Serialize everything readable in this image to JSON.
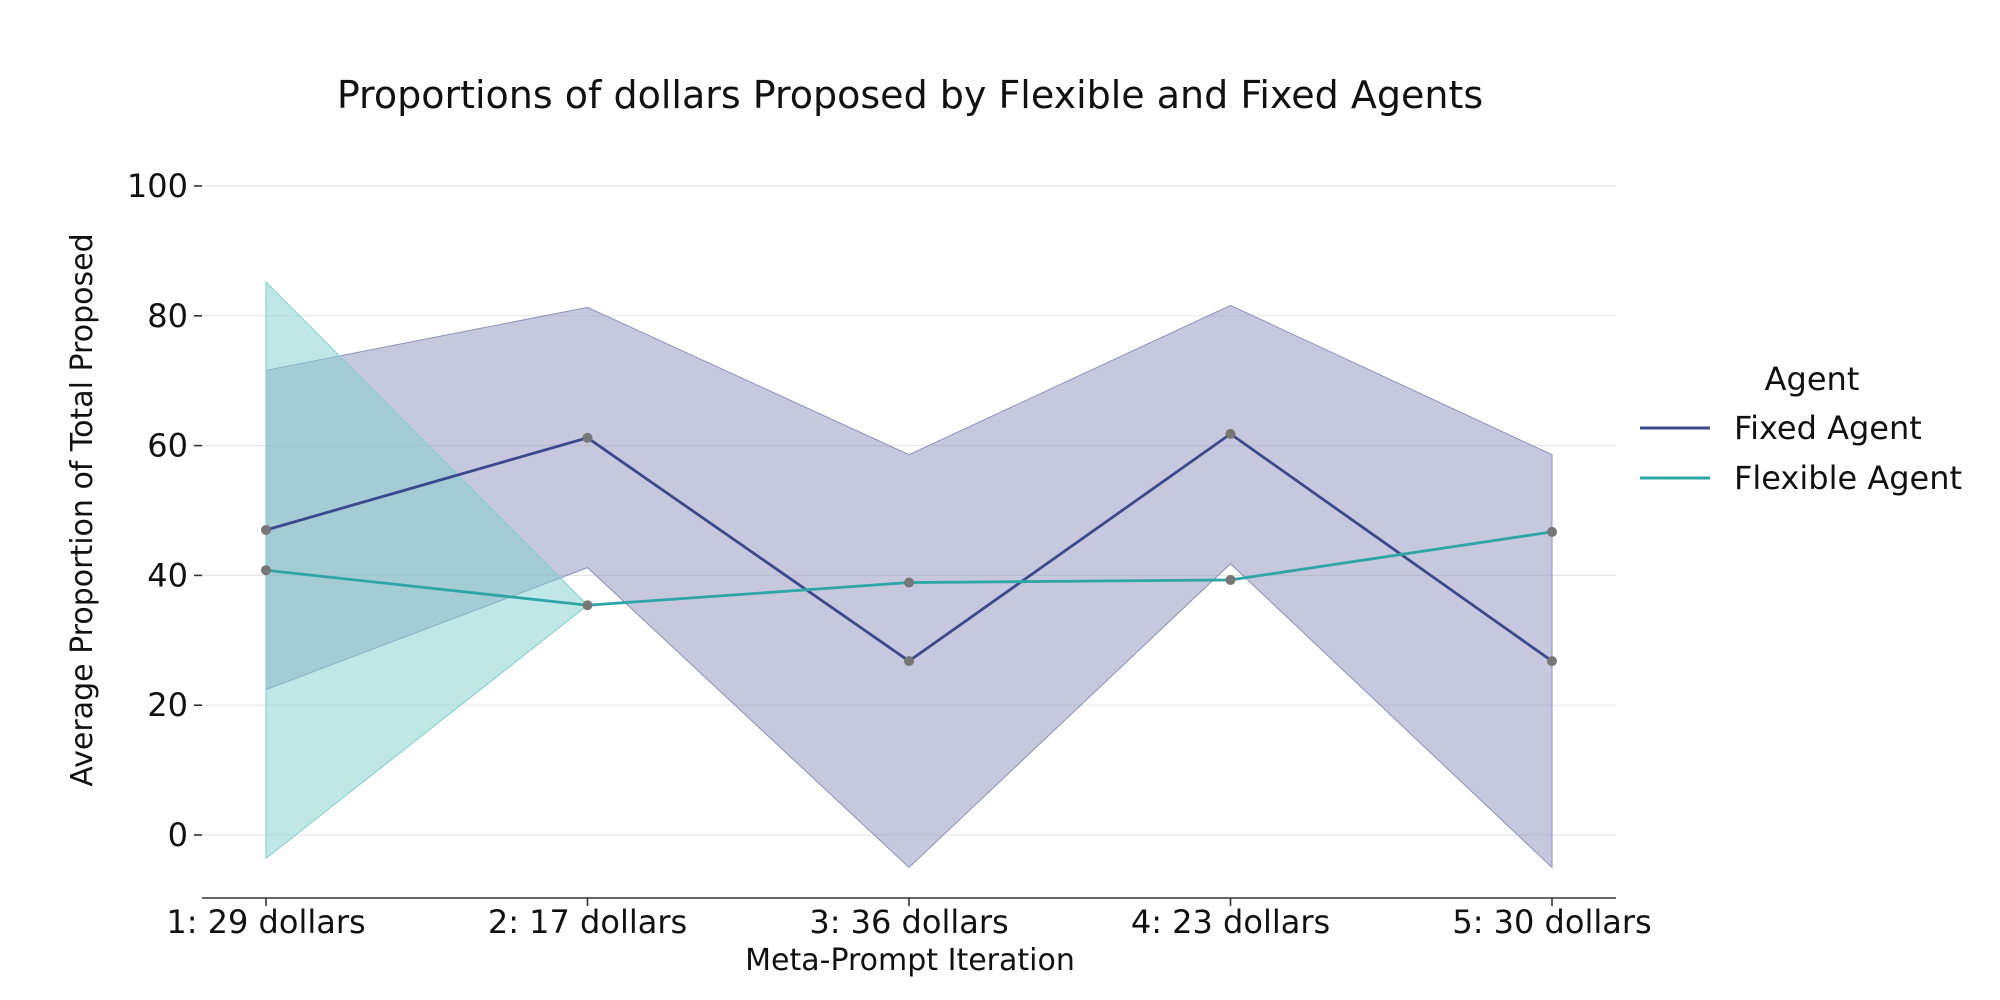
{
  "chart_data": {
    "type": "line",
    "title": "Proportions of dollars Proposed by Flexible and Fixed Agents",
    "xlabel": "Meta-Prompt Iteration",
    "ylabel": "Average Proportion of Total Proposed",
    "categories": [
      "1: 29 dollars",
      "2: 17 dollars",
      "3: 36 dollars",
      "4: 23 dollars",
      "5: 30 dollars"
    ],
    "ylim": [
      -10,
      110
    ],
    "yticks": [
      0,
      20,
      40,
      60,
      80,
      100
    ],
    "grid": "horizontal",
    "legend": {
      "title": "Agent",
      "placement": "right"
    },
    "series": [
      {
        "name": "Fixed Agent",
        "color": "#3b4a8c",
        "band_color": "#8e92bb",
        "values": [
          47,
          61.2,
          26.8,
          61.8,
          26.8
        ],
        "ci_lower": [
          22.4,
          41.2,
          -5,
          41.8,
          -5
        ],
        "ci_upper": [
          71.6,
          81.3,
          58.6,
          81.6,
          58.6
        ]
      },
      {
        "name": "Flexible Agent",
        "color": "#2ea6a6",
        "band_color": "#7fd0cc",
        "values": [
          40.8,
          35.4,
          38.9,
          39.3,
          46.7
        ],
        "ci_lower": [
          -3.6,
          35.4,
          38.9,
          39.3,
          46.7
        ],
        "ci_upper": [
          85.2,
          35.4,
          38.9,
          39.3,
          46.7
        ]
      }
    ]
  }
}
